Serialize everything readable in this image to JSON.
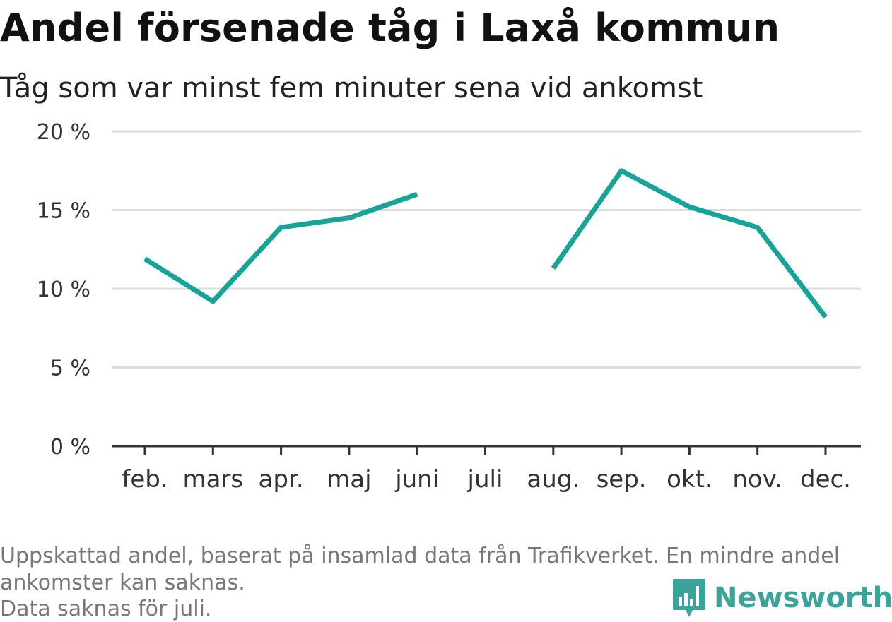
{
  "title": "Andel försenade tåg i Laxå kommun",
  "subtitle": "Tåg som var minst fem minuter sena vid ankomst",
  "notes": {
    "line1": "Uppskattad andel, baserat på insamlad data från Trafikverket. En mindre andel",
    "line2": "ankomster kan saknas.",
    "line3": "Data saknas för juli."
  },
  "brand": {
    "name": "Newsworthy",
    "icon": "newsworthy-logo-icon",
    "color": "#3aa39a"
  },
  "colors": {
    "line": "#16a398",
    "grid": "#dddddd",
    "axis": "#333333"
  },
  "chart_data": {
    "type": "line",
    "categories": [
      "feb.",
      "mars",
      "apr.",
      "maj",
      "juni",
      "juli",
      "aug.",
      "sep.",
      "okt.",
      "nov.",
      "dec."
    ],
    "series": [
      {
        "values": [
          11.9,
          9.2,
          13.9,
          14.5,
          16.0,
          null,
          11.3,
          17.5,
          15.2,
          13.9,
          8.2
        ]
      }
    ],
    "y_ticks": [
      0,
      5,
      10,
      15,
      20
    ],
    "y_tick_labels": [
      "0 %",
      "5 %",
      "10 %",
      "15 %",
      "20 %"
    ],
    "ylim": [
      0,
      20
    ],
    "xlabel": "",
    "ylabel": "",
    "grid": true
  }
}
